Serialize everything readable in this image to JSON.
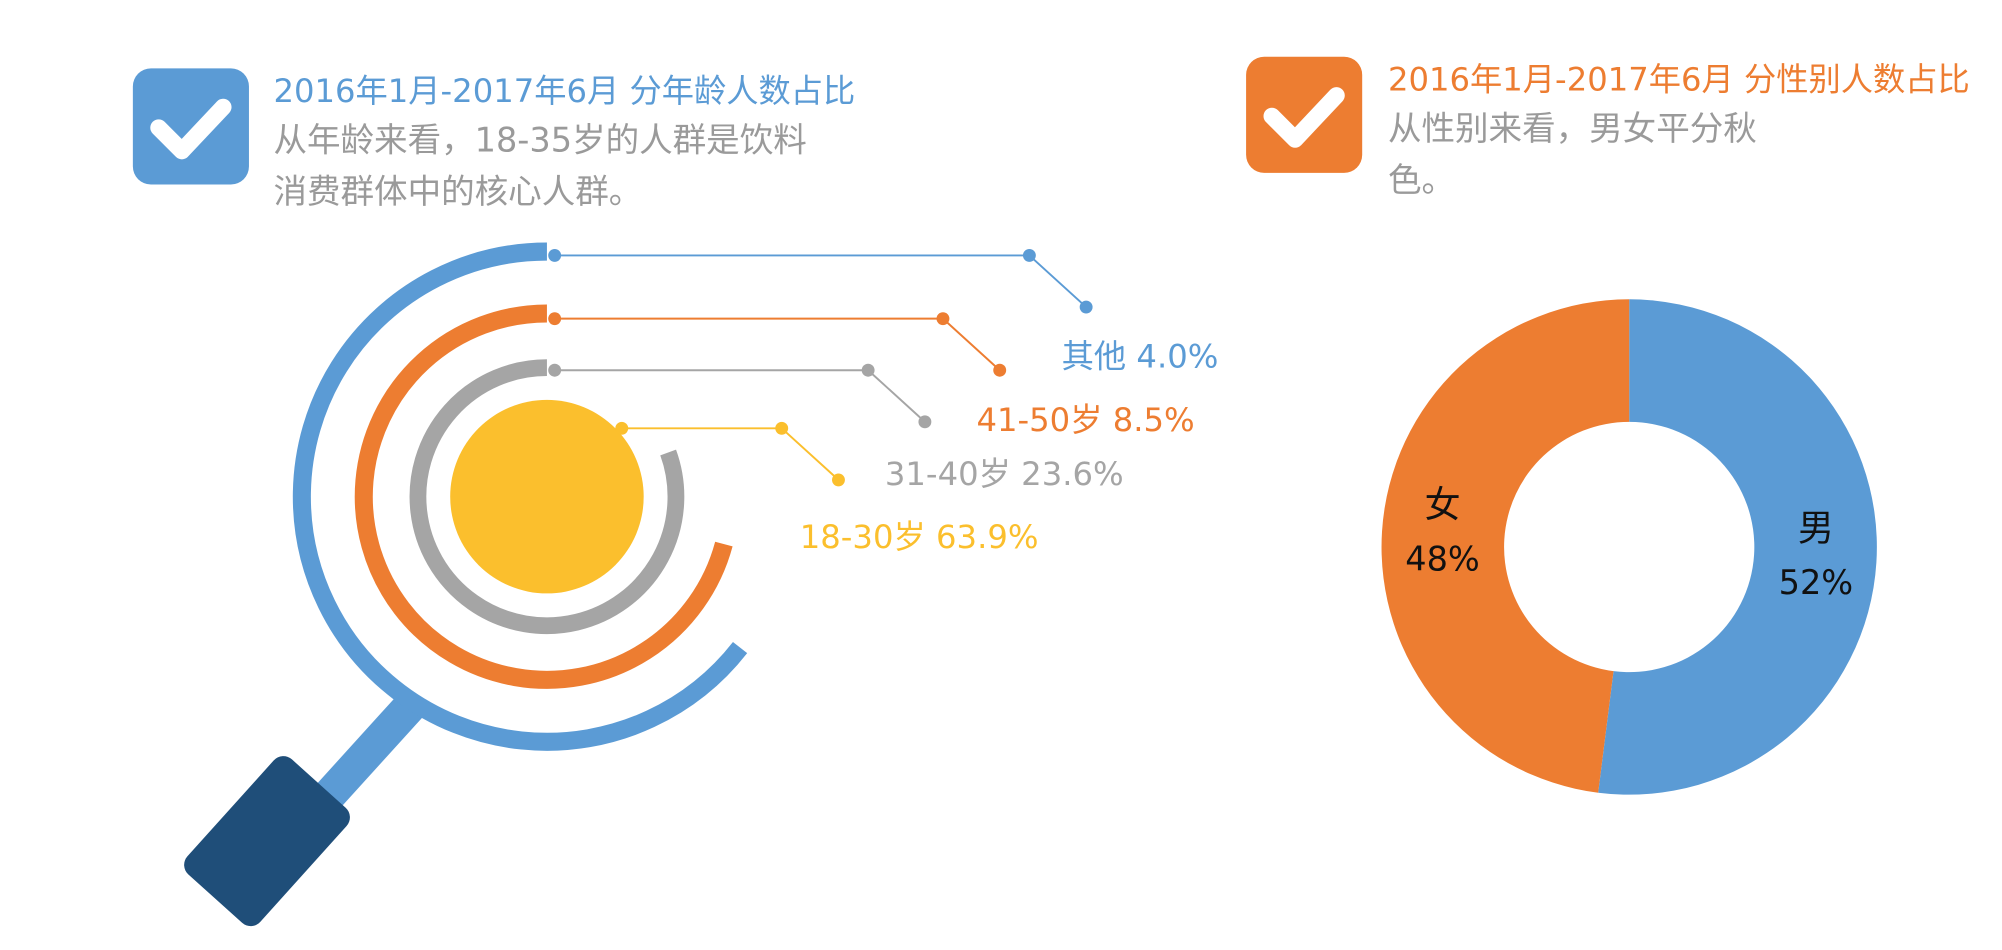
{
  "chart_data": [
    {
      "type": "radial",
      "title": "2016年1月-2017年6月 分年龄人数占比",
      "subtitle": [
        "从年龄来看，18-35岁的人群是饮料",
        "消费群体中的核心人群。"
      ],
      "color": "#5b9bd5",
      "categories": [
        "18-30岁",
        "31-40岁",
        "41-50岁",
        "其他"
      ],
      "values": [
        63.9,
        23.6,
        8.5,
        4.0
      ],
      "value_labels": [
        "63.9%",
        "23.6%",
        "8.5%",
        "4.0%"
      ],
      "colors": [
        "#fbbf2d",
        "#a5a5a5",
        "#ed7d31",
        "#5b9bd5"
      ]
    },
    {
      "type": "donut",
      "title": "2016年1月-2017年6月 分性别人数占比",
      "subtitle": [
        "从性别来看，男女平分秋",
        "色。"
      ],
      "color": "#ed7d31",
      "categories": [
        "男",
        "女"
      ],
      "values": [
        52,
        48
      ],
      "value_labels": [
        "52%",
        "48%"
      ],
      "colors": [
        "#5b9bd5",
        "#ed7d31"
      ]
    }
  ]
}
